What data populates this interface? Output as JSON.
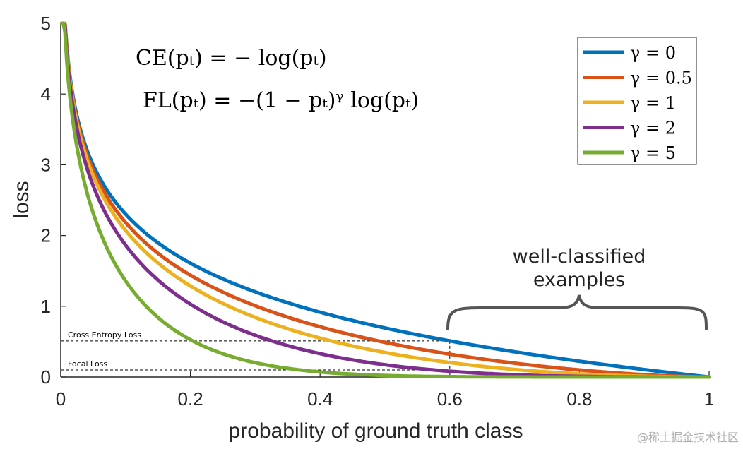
{
  "chart_data": {
    "type": "line",
    "xlabel": "probability of ground truth class",
    "ylabel": "loss",
    "xlim": [
      0,
      1
    ],
    "ylim": [
      0,
      5
    ],
    "x_ticks": [
      "0",
      "0.2",
      "0.4",
      "0.6",
      "0.8",
      "1"
    ],
    "y_ticks": [
      "0",
      "1",
      "2",
      "3",
      "4",
      "5"
    ],
    "grid": false,
    "legend_position": "top-right",
    "series": [
      {
        "name": "γ = 0",
        "gamma": 0,
        "color": "#0072BD",
        "x": [
          0.01,
          0.05,
          0.1,
          0.2,
          0.3,
          0.4,
          0.5,
          0.6,
          0.7,
          0.8,
          0.9,
          1.0
        ],
        "values": [
          4.61,
          3.0,
          2.3,
          1.61,
          1.2,
          0.92,
          0.69,
          0.51,
          0.36,
          0.22,
          0.11,
          0.0
        ]
      },
      {
        "name": "γ = 0.5",
        "gamma": 0.5,
        "color": "#D95319",
        "x": [
          0.01,
          0.05,
          0.1,
          0.2,
          0.3,
          0.4,
          0.5,
          0.6,
          0.7,
          0.8,
          0.9,
          1.0
        ],
        "values": [
          4.58,
          2.92,
          2.18,
          1.44,
          1.0,
          0.71,
          0.49,
          0.32,
          0.2,
          0.1,
          0.03,
          0.0
        ]
      },
      {
        "name": "γ = 1",
        "gamma": 1,
        "color": "#EDB120",
        "x": [
          0.01,
          0.05,
          0.1,
          0.2,
          0.3,
          0.4,
          0.5,
          0.6,
          0.7,
          0.8,
          0.9,
          1.0
        ],
        "values": [
          4.56,
          2.85,
          2.07,
          1.29,
          0.84,
          0.55,
          0.35,
          0.2,
          0.11,
          0.04,
          0.01,
          0.0
        ]
      },
      {
        "name": "γ = 2",
        "gamma": 2,
        "color": "#7E2F8E",
        "x": [
          0.01,
          0.05,
          0.1,
          0.2,
          0.3,
          0.4,
          0.5,
          0.6,
          0.7,
          0.8,
          0.9,
          1.0
        ],
        "values": [
          4.51,
          2.7,
          1.87,
          1.03,
          0.59,
          0.33,
          0.17,
          0.08,
          0.03,
          0.01,
          0.0,
          0.0
        ]
      },
      {
        "name": "γ = 5",
        "gamma": 5,
        "color": "#77AC30",
        "x": [
          0.01,
          0.05,
          0.1,
          0.2,
          0.3,
          0.4,
          0.5,
          0.6,
          0.7,
          0.8,
          0.9,
          1.0
        ],
        "values": [
          4.38,
          2.32,
          1.36,
          0.53,
          0.2,
          0.07,
          0.02,
          0.01,
          0.0,
          0.0,
          0.0,
          0.0
        ]
      }
    ],
    "formulas": [
      "CE(pₜ) = − log(pₜ)",
      "FL(pₜ) = −(1 − pₜ)ᵞ log(pₜ)"
    ],
    "annotations": {
      "well_classified_line1": "well-classified",
      "well_classified_line2": "examples",
      "ce_label": "Cross Entropy Loss",
      "fl_label": "Focal Loss",
      "ce_reference_value": 0.51,
      "fl_reference_value": 0.1,
      "reference_x": 0.6,
      "bracket_range": [
        0.6,
        1.0
      ]
    }
  },
  "watermark": "@稀土掘金技术社区"
}
